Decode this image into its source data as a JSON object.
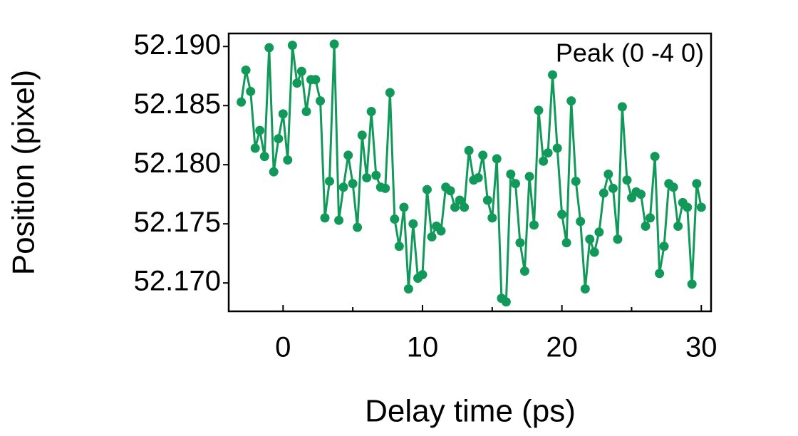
{
  "chart_data": {
    "type": "line",
    "x_label": "Delay time (ps)",
    "y_label": "Position (pixel)",
    "annotation": "Peak (0 -4 0)",
    "xlim": [
      -3.9,
      30.7
    ],
    "xticks": [
      0,
      10,
      20,
      30
    ],
    "xminor_ticks": [
      5,
      15,
      25
    ],
    "ylim": [
      52.1676,
      52.1911
    ],
    "yticks": [
      {
        "value": 52.17,
        "label": "52.170"
      },
      52.175,
      {
        "value": 52.18,
        "label": "52.180"
      },
      52.185,
      {
        "value": 52.19,
        "label": "52.190"
      }
    ],
    "grid": false,
    "markers": true,
    "series": [
      {
        "color": "#11995a",
        "x": [
          -3,
          -2.67,
          -2.33,
          -2,
          -1.67,
          -1.33,
          -1,
          -0.67,
          -0.33,
          0,
          0.33,
          0.67,
          1,
          1.33,
          1.67,
          2,
          2.33,
          2.67,
          3,
          3.33,
          3.67,
          4,
          4.33,
          4.67,
          5,
          5.33,
          5.67,
          6,
          6.33,
          6.67,
          7,
          7.33,
          7.67,
          8,
          8.33,
          8.67,
          9,
          9.33,
          9.67,
          10,
          10.33,
          10.67,
          11,
          11.33,
          11.67,
          12,
          12.33,
          12.67,
          13,
          13.33,
          13.67,
          14,
          14.33,
          14.67,
          15,
          15.33,
          15.67,
          16,
          16.33,
          16.67,
          17,
          17.33,
          17.67,
          18,
          18.33,
          18.67,
          19,
          19.33,
          19.67,
          20,
          20.33,
          20.67,
          21,
          21.33,
          21.67,
          22,
          22.33,
          22.67,
          23,
          23.33,
          23.67,
          24,
          24.33,
          24.67,
          25,
          25.33,
          25.67,
          26,
          26.33,
          26.67,
          27,
          27.33,
          27.67,
          28,
          28.33,
          28.67,
          29,
          29.33,
          29.67,
          30
        ],
        "values": [
          52.1853,
          52.188,
          52.1862,
          52.1814,
          52.1829,
          52.1807,
          52.1899,
          52.1794,
          52.1822,
          52.1843,
          52.1804,
          52.1901,
          52.1869,
          52.1879,
          52.1845,
          52.1872,
          52.1872,
          52.1854,
          52.1755,
          52.1786,
          52.1902,
          52.1753,
          52.1781,
          52.1808,
          52.1784,
          52.1747,
          52.1825,
          52.1789,
          52.1845,
          52.1791,
          52.1781,
          52.178,
          52.1861,
          52.1754,
          52.1731,
          52.1764,
          52.1695,
          52.175,
          52.1704,
          52.1707,
          52.1779,
          52.1739,
          52.1748,
          52.1744,
          52.1781,
          52.1778,
          52.1764,
          52.177,
          52.1764,
          52.1812,
          52.1787,
          52.1789,
          52.1808,
          52.177,
          52.1755,
          52.1805,
          52.1687,
          52.1684,
          52.1792,
          52.1784,
          52.1734,
          52.171,
          52.179,
          52.1749,
          52.1846,
          52.1803,
          52.181,
          52.1876,
          52.1814,
          52.1758,
          52.1734,
          52.1854,
          52.1786,
          52.1752,
          52.1695,
          52.1737,
          52.1726,
          52.1743,
          52.1776,
          52.1792,
          52.178,
          52.1737,
          52.1849,
          52.1787,
          52.1772,
          52.1777,
          52.1775,
          52.1748,
          52.1755,
          52.1807,
          52.1708,
          52.1731,
          52.1784,
          52.1781,
          52.1748,
          52.1768,
          52.1764,
          52.1699,
          52.1784,
          52.1764
        ]
      }
    ]
  }
}
